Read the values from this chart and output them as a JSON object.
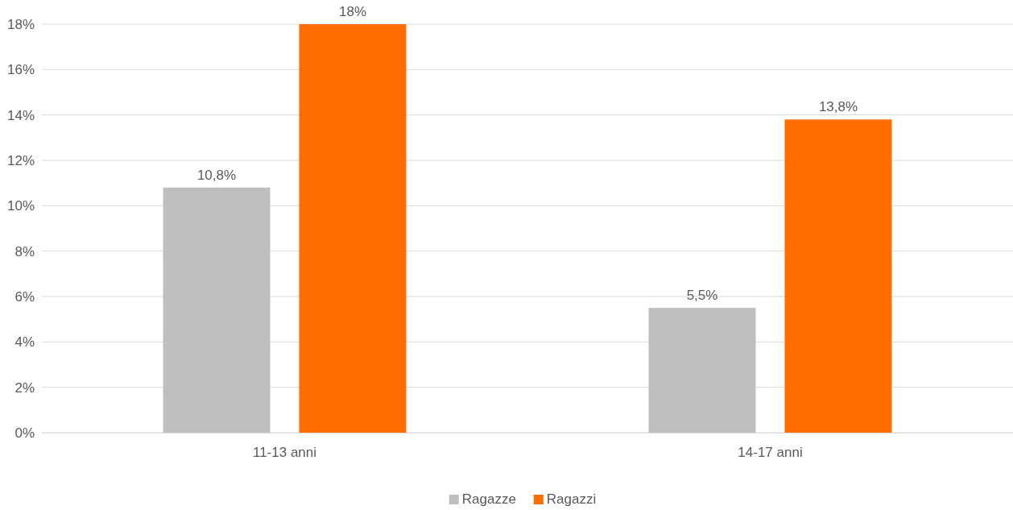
{
  "chart_data": {
    "type": "bar",
    "categories": [
      "11-13 anni",
      "14-17 anni"
    ],
    "series": [
      {
        "name": "Ragazze",
        "color": "#bfbfbf",
        "values": [
          10.8,
          5.5
        ],
        "value_labels": [
          "10,8%",
          "5,5%"
        ]
      },
      {
        "name": "Ragazzi",
        "color": "#ff6d00",
        "values": [
          18,
          13.8
        ],
        "value_labels": [
          "18%",
          "13,8%"
        ]
      }
    ],
    "ylim": [
      0,
      18
    ],
    "yticks": [
      {
        "value": 0,
        "label": "0%"
      },
      {
        "value": 2,
        "label": "2%"
      },
      {
        "value": 4,
        "label": "4%"
      },
      {
        "value": 6,
        "label": "6%"
      },
      {
        "value": 8,
        "label": "8%"
      },
      {
        "value": 10,
        "label": "10%"
      },
      {
        "value": 12,
        "label": "12%"
      },
      {
        "value": 14,
        "label": "14%"
      },
      {
        "value": 16,
        "label": "16%"
      },
      {
        "value": 18,
        "label": "18%"
      }
    ],
    "grid": "y",
    "legend": "bottom"
  }
}
